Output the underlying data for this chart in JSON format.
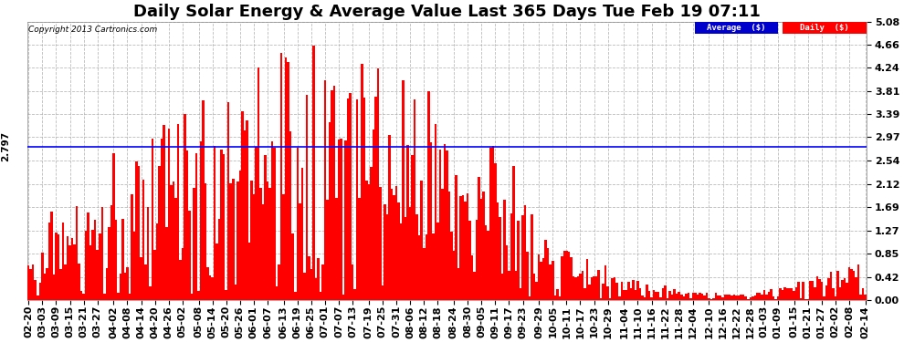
{
  "title": "Daily Solar Energy & Average Value Last 365 Days Tue Feb 19 07:11",
  "copyright": "Copyright 2013 Cartronics.com",
  "legend_labels": [
    "Average  ($)",
    "Daily  ($)"
  ],
  "legend_colors": [
    "#0000cc",
    "#ff0000"
  ],
  "bar_color": "#ff0000",
  "average_line_color": "#0000ff",
  "average_value": 2.797,
  "average_label": "2.797",
  "ylim": [
    0.0,
    5.08
  ],
  "yticks": [
    0.0,
    0.42,
    0.85,
    1.27,
    1.69,
    2.12,
    2.54,
    2.97,
    3.39,
    3.81,
    4.24,
    4.66,
    5.08
  ],
  "background_color": "#ffffff",
  "plot_bg_color": "#ffffff",
  "grid_color": "#aaaaaa",
  "title_fontsize": 13,
  "tick_fontsize": 8,
  "x_labels": [
    "02-20",
    "03-03",
    "03-09",
    "03-15",
    "03-21",
    "03-27",
    "04-02",
    "04-08",
    "04-14",
    "04-20",
    "04-26",
    "05-02",
    "05-08",
    "05-14",
    "05-20",
    "05-26",
    "06-01",
    "06-07",
    "06-13",
    "06-19",
    "06-25",
    "07-01",
    "07-07",
    "07-13",
    "07-19",
    "07-25",
    "07-31",
    "08-06",
    "08-12",
    "08-18",
    "08-24",
    "08-30",
    "09-05",
    "09-11",
    "09-17",
    "09-23",
    "09-29",
    "10-05",
    "10-11",
    "10-17",
    "10-23",
    "10-29",
    "11-04",
    "11-10",
    "11-16",
    "11-22",
    "11-28",
    "12-04",
    "12-10",
    "12-16",
    "12-22",
    "12-28",
    "01-03",
    "01-09",
    "01-15",
    "01-21",
    "01-27",
    "02-02",
    "02-08",
    "02-14"
  ],
  "n_bars": 365,
  "seed": 42
}
